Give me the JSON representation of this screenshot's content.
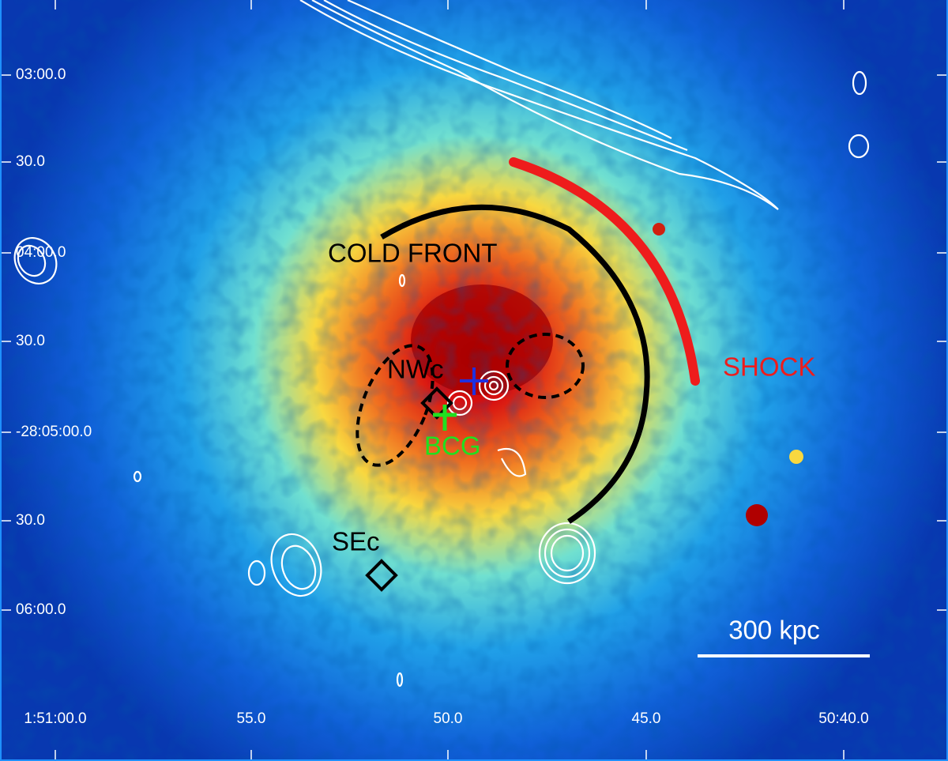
{
  "image": {
    "y_axis_labels": [
      "03:00.0",
      "30.0",
      "04:00.0",
      "30.0",
      "-28:05:00.0",
      "30.0",
      "06:00.0"
    ],
    "x_axis_labels": [
      "1:51:00.0",
      "55.0",
      "50.0",
      "45.0",
      "50:40.0"
    ],
    "annotations": {
      "cold_front": "COLD  FRONT",
      "shock": "SHOCK",
      "nwc": "NWc",
      "bcg": "BCG",
      "sec": "SEc",
      "scale_bar": "300 kpc"
    }
  }
}
